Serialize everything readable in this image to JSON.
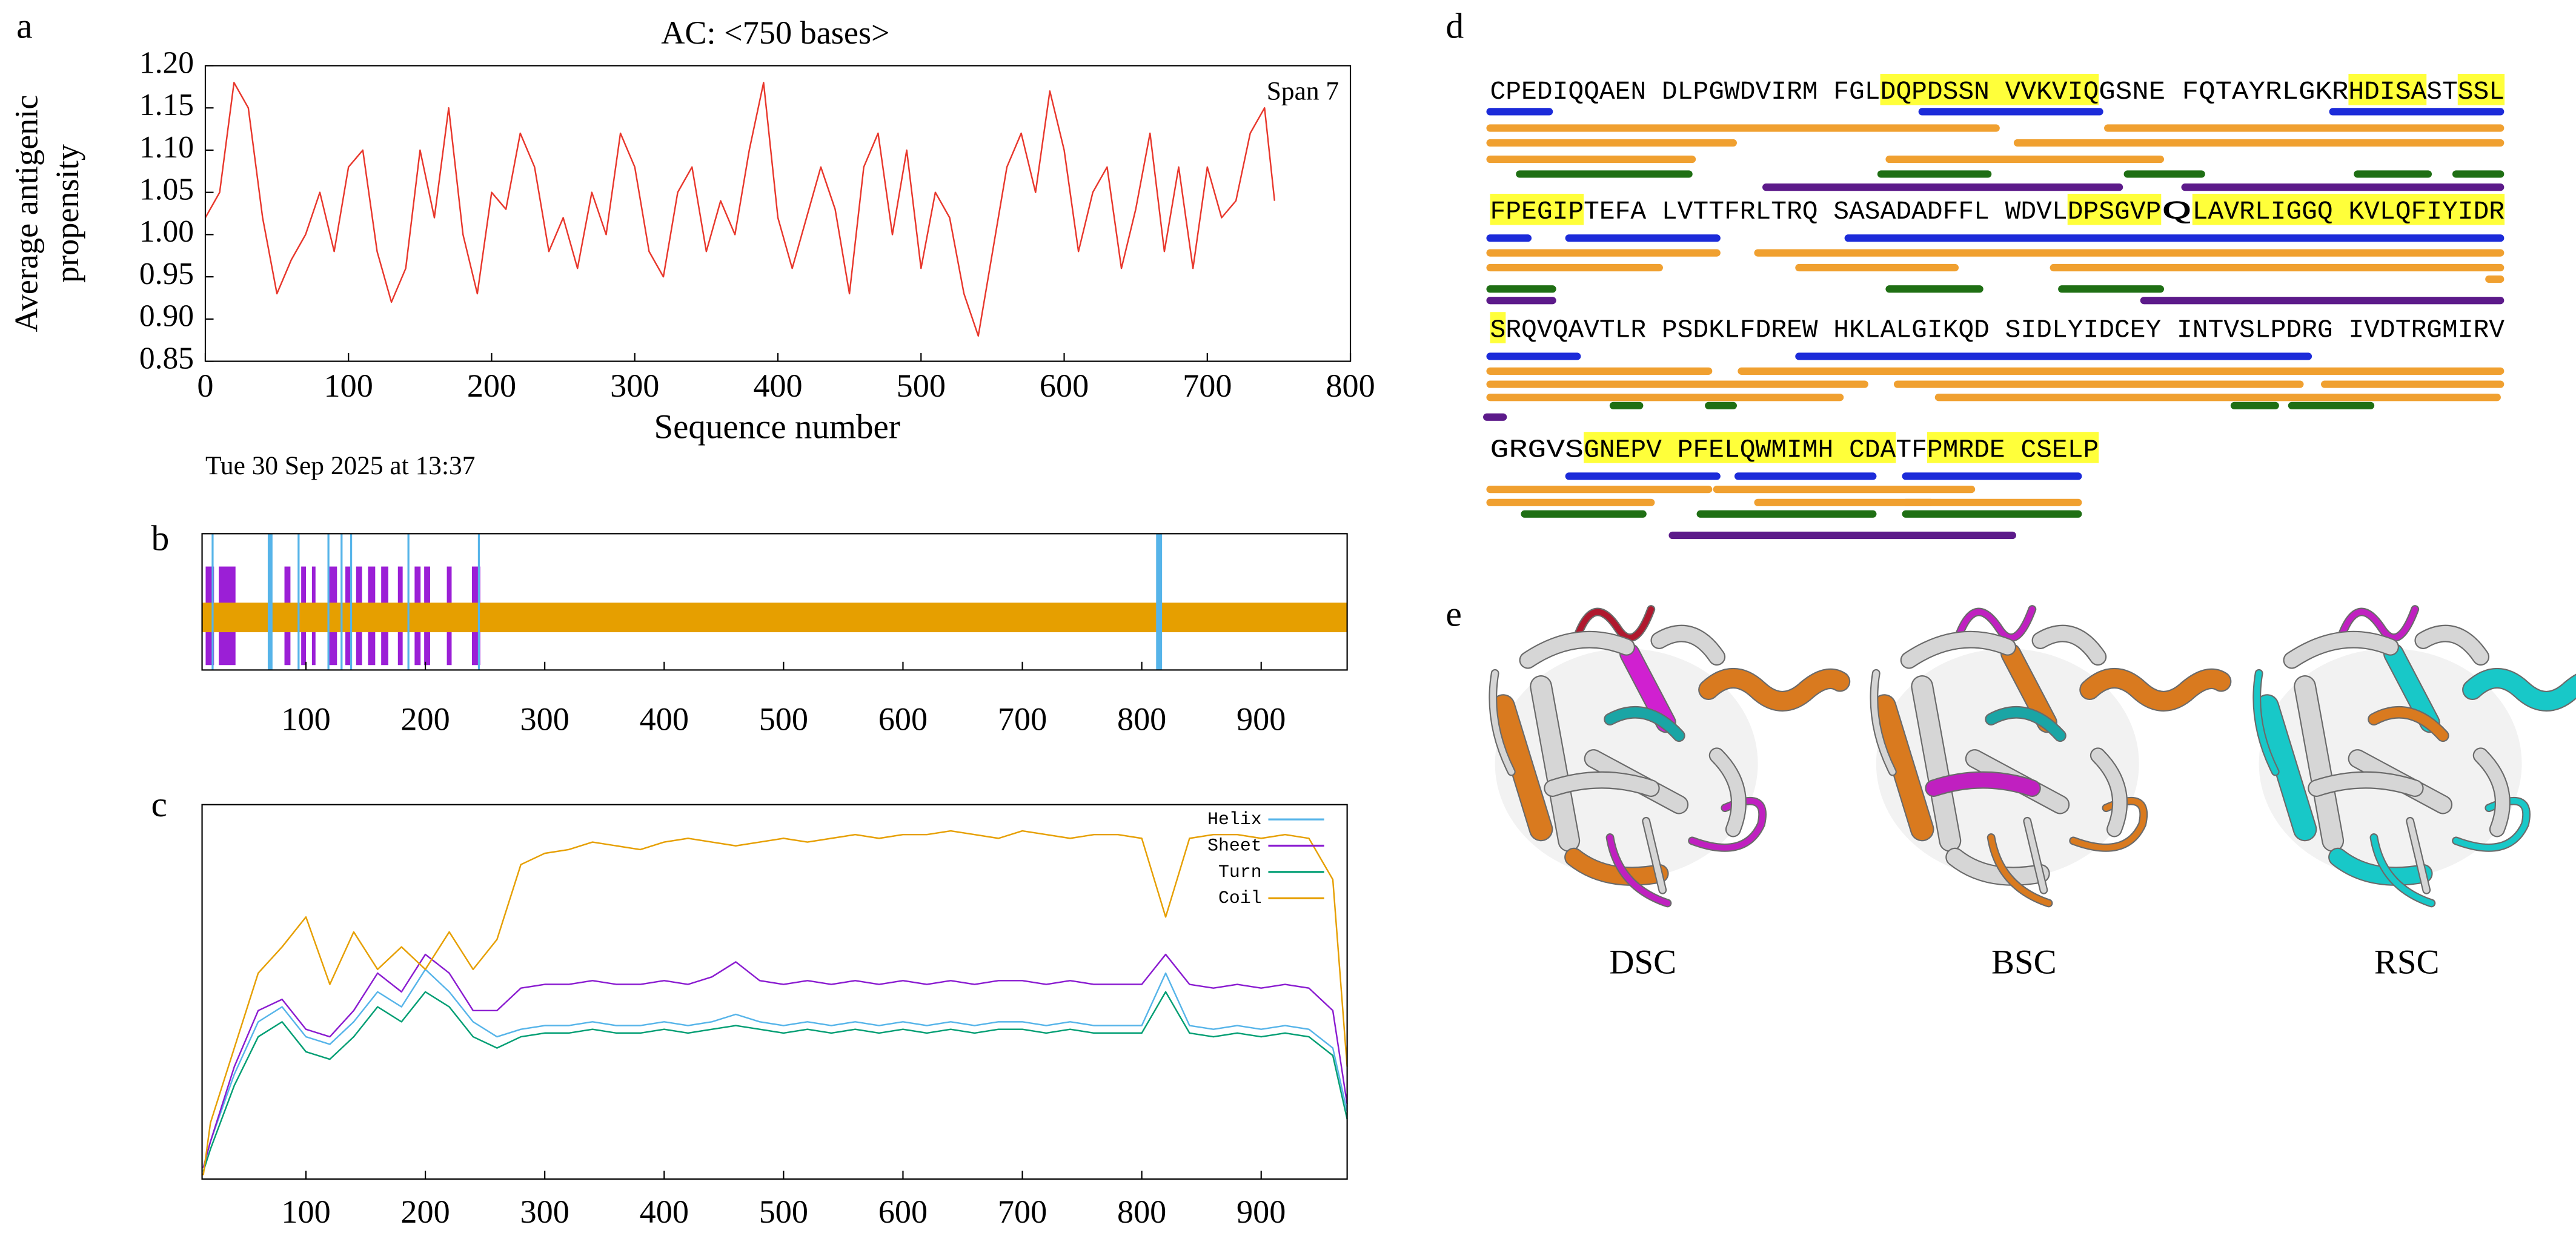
{
  "chart_data": [
    {
      "panel": "a",
      "type": "line",
      "title": "AC: <750 bases>",
      "x_label": "Sequence number",
      "y_label": [
        "Average antigenic",
        "propensity"
      ],
      "annotation": "Span 7",
      "footnote": "Tue 30 Sep 2025 at 13:37",
      "xlim": [
        0,
        800
      ],
      "xticks": [
        0,
        100,
        200,
        300,
        400,
        500,
        600,
        700,
        800
      ],
      "ylim": [
        0.85,
        1.2
      ],
      "yticks": [
        {
          "value": 0.85,
          "label": "0.85"
        },
        {
          "value": 0.9,
          "label": "0.90"
        },
        {
          "value": 0.95,
          "label": "0.95"
        },
        {
          "value": 1,
          "label": "1.00"
        },
        {
          "value": 1.05,
          "label": "1.05"
        },
        {
          "value": 1.1,
          "label": "1.10"
        },
        {
          "value": 1.15,
          "label": "1.15"
        },
        {
          "value": 1.2,
          "label": "1.20"
        }
      ],
      "x": [
        0,
        10,
        20,
        30,
        40,
        50,
        60,
        70,
        80,
        90,
        100,
        110,
        120,
        130,
        140,
        150,
        160,
        170,
        180,
        190,
        200,
        210,
        220,
        230,
        240,
        250,
        260,
        270,
        280,
        290,
        300,
        310,
        320,
        330,
        340,
        350,
        360,
        370,
        380,
        390,
        400,
        410,
        420,
        430,
        440,
        450,
        460,
        470,
        480,
        490,
        500,
        510,
        520,
        530,
        540,
        550,
        560,
        570,
        580,
        590,
        600,
        610,
        620,
        630,
        640,
        650,
        660,
        670,
        680,
        690,
        700,
        710,
        720,
        730,
        740,
        747
      ],
      "series": [
        {
          "color": "#e8372c",
          "values": [
            1.02,
            1.05,
            1.18,
            1.15,
            1.02,
            0.93,
            0.97,
            1.0,
            1.05,
            0.98,
            1.08,
            1.1,
            0.98,
            0.92,
            0.96,
            1.1,
            1.02,
            1.15,
            1.0,
            0.93,
            1.05,
            1.03,
            1.12,
            1.08,
            0.98,
            1.02,
            0.96,
            1.05,
            1.0,
            1.12,
            1.08,
            0.98,
            0.95,
            1.05,
            1.08,
            0.98,
            1.04,
            1.0,
            1.1,
            1.18,
            1.02,
            0.96,
            1.02,
            1.08,
            1.03,
            0.93,
            1.08,
            1.12,
            1.0,
            1.1,
            0.96,
            1.05,
            1.02,
            0.93,
            0.88,
            0.98,
            1.08,
            1.12,
            1.05,
            1.17,
            1.1,
            0.98,
            1.05,
            1.08,
            0.96,
            1.03,
            1.12,
            0.98,
            1.08,
            0.96,
            1.08,
            1.02,
            1.04,
            1.12,
            1.15,
            1.04
          ]
        }
      ]
    },
    {
      "panel": "b",
      "type": "track",
      "xlim": [
        13,
        972
      ],
      "xticks": [
        100,
        200,
        300,
        400,
        500,
        600,
        700,
        800,
        900
      ],
      "tracks": [
        {
          "color": "#9b1fd6",
          "spans": [
            [
              16,
              23
            ],
            [
              27,
              41
            ],
            [
              82,
              87
            ],
            [
              96,
              100
            ],
            [
              105,
              108
            ],
            [
              119,
              126
            ],
            [
              133,
              138
            ],
            [
              142,
              147
            ],
            [
              152,
              158
            ],
            [
              163,
              169
            ],
            [
              177,
              181
            ],
            [
              191,
              196
            ],
            [
              199,
              204
            ],
            [
              218,
              222
            ],
            [
              239,
              246
            ]
          ]
        },
        {
          "color": "#e69f00",
          "spans": [
            [
              13,
              972
            ]
          ]
        },
        {
          "color": "#56b4e9",
          "spans": [
            [
              21,
              22
            ],
            [
              68,
              72
            ],
            [
              93,
              94
            ],
            [
              118,
              119
            ],
            [
              129,
              130
            ],
            [
              137,
              138
            ],
            [
              185,
              186
            ],
            [
              244,
              245
            ],
            [
              812,
              817
            ]
          ]
        }
      ]
    },
    {
      "panel": "c",
      "type": "line",
      "xlim": [
        13,
        972
      ],
      "xticks": [
        100,
        200,
        300,
        400,
        500,
        600,
        700,
        800,
        900
      ],
      "ylim": [
        0,
        100
      ],
      "legend": "upper right",
      "x": [
        14,
        20,
        40,
        60,
        80,
        100,
        120,
        140,
        160,
        180,
        200,
        220,
        240,
        260,
        280,
        300,
        320,
        340,
        360,
        380,
        400,
        420,
        440,
        460,
        480,
        500,
        520,
        540,
        560,
        580,
        600,
        620,
        640,
        660,
        680,
        700,
        720,
        740,
        760,
        780,
        800,
        820,
        840,
        860,
        880,
        900,
        920,
        940,
        960,
        972
      ],
      "series": [
        {
          "name": "Helix",
          "color": "#56b4e9",
          "values": [
            3,
            10,
            28,
            42,
            46,
            38,
            36,
            42,
            50,
            46,
            56,
            50,
            42,
            38,
            40,
            41,
            41,
            42,
            41,
            41,
            42,
            41,
            42,
            44,
            42,
            41,
            42,
            41,
            42,
            41,
            42,
            41,
            42,
            41,
            42,
            42,
            41,
            42,
            41,
            41,
            41,
            55,
            41,
            40,
            41,
            40,
            41,
            40,
            35,
            18
          ]
        },
        {
          "name": "Sheet",
          "color": "#8a1bd0",
          "values": [
            3,
            10,
            30,
            45,
            48,
            40,
            38,
            45,
            55,
            50,
            60,
            55,
            45,
            45,
            51,
            52,
            52,
            53,
            52,
            52,
            53,
            52,
            54,
            58,
            53,
            52,
            53,
            52,
            53,
            52,
            53,
            52,
            53,
            52,
            53,
            53,
            52,
            53,
            52,
            52,
            52,
            60,
            52,
            51,
            52,
            51,
            52,
            51,
            45,
            20
          ]
        },
        {
          "name": "Turn",
          "color": "#009e73",
          "values": [
            2,
            8,
            25,
            38,
            42,
            34,
            32,
            38,
            46,
            42,
            50,
            46,
            38,
            35,
            38,
            39,
            39,
            40,
            39,
            39,
            40,
            39,
            40,
            41,
            40,
            39,
            40,
            39,
            40,
            39,
            40,
            39,
            40,
            39,
            40,
            40,
            39,
            40,
            39,
            39,
            39,
            50,
            39,
            38,
            39,
            38,
            39,
            38,
            33,
            16
          ]
        },
        {
          "name": "Coil",
          "color": "#e69f00",
          "values": [
            1,
            15,
            35,
            55,
            62,
            70,
            52,
            66,
            56,
            62,
            56,
            66,
            56,
            64,
            84,
            87,
            88,
            90,
            89,
            88,
            90,
            91,
            90,
            89,
            90,
            91,
            90,
            91,
            92,
            91,
            92,
            92,
            93,
            92,
            91,
            93,
            92,
            91,
            92,
            92,
            91,
            70,
            91,
            92,
            92,
            91,
            92,
            91,
            80,
            30
          ]
        }
      ]
    }
  ],
  "sequence": {
    "panel": "d",
    "lines": [
      [
        {
          "text": "CPEDIQQAEN DLPGWDVIRM FGL"
        },
        {
          "text": "DQPDSSN VVKVIQ",
          "highlight": true
        },
        {
          "text": "GSNE FQTAYRLGKR "
        },
        {
          "text": "HDISA",
          "highlight": true
        },
        {
          "text": "ST"
        },
        {
          "text": "SSL",
          "highlight": true
        }
      ],
      [
        {
          "text": "FPEGIP",
          "highlight": true
        },
        {
          "text": "TEFA LVTTFRLTRQ SASADADFFL WDVL"
        },
        {
          "text": "DPSGVP",
          "highlight": true
        },
        {
          "text": " Q"
        },
        {
          "text": "LAVRLIGGQ KVLQFIYIDR",
          "highlight": true
        }
      ],
      [
        {
          "text": "S",
          "highlight": true
        },
        {
          "text": "RQVQAVTLR PSDKLFDREW HKLALGIKQD SIDLYIDCEY INTVSLPDRG IVDTRGMIRV"
        }
      ],
      [
        {
          "text": "GRGVS "
        },
        {
          "text": "GNEPV PFELQ",
          "highlight": true
        },
        {
          "text": "WMIMH CDA",
          "highlight": true
        },
        {
          "text": "TF"
        },
        {
          "text": "PMRDE CSELP",
          "highlight": true
        }
      ]
    ]
  },
  "structures": {
    "panel": "e",
    "names": [
      "DSC",
      "BSC",
      "RSC"
    ]
  }
}
